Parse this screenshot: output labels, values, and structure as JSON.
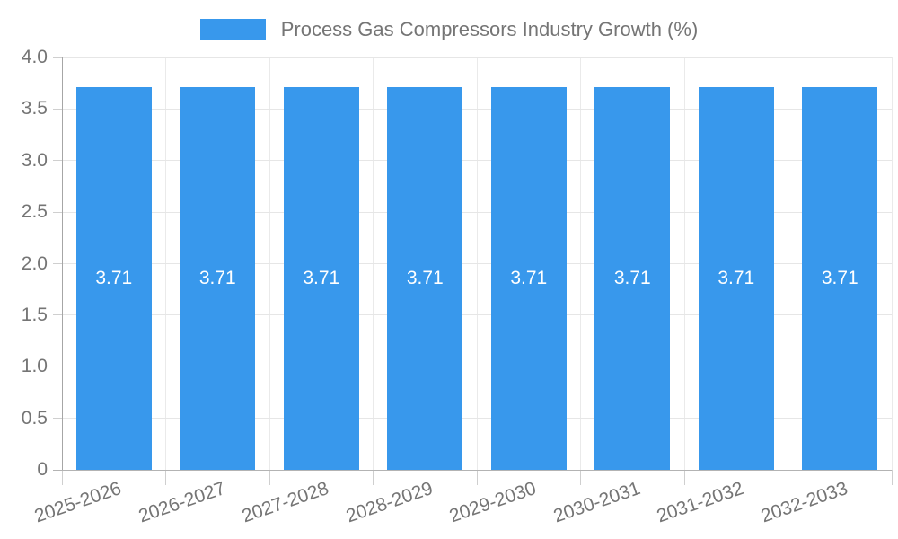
{
  "chart_data": {
    "type": "bar",
    "title": "Process Gas Compressors Industry Growth (%)",
    "legend": {
      "position": "top",
      "entries": [
        "Process Gas Compressors Industry Growth (%)"
      ]
    },
    "categories": [
      "2025-2026",
      "2026-2027",
      "2027-2028",
      "2028-2029",
      "2029-2030",
      "2030-2031",
      "2031-2032",
      "2032-2033"
    ],
    "series": [
      {
        "name": "Process Gas Compressors Industry Growth (%)",
        "values": [
          3.71,
          3.71,
          3.71,
          3.71,
          3.71,
          3.71,
          3.71,
          3.71
        ]
      }
    ],
    "value_labels": [
      "3.71",
      "3.71",
      "3.71",
      "3.71",
      "3.71",
      "3.71",
      "3.71",
      "3.71"
    ],
    "xlabel": "",
    "ylabel": "",
    "ylim": [
      0,
      4
    ],
    "yticks": [
      {
        "value": 0,
        "label": "0"
      },
      {
        "value": 0.5,
        "label": "0.5"
      },
      {
        "value": 1,
        "label": "1.0"
      },
      {
        "value": 1.5,
        "label": "1.5"
      },
      {
        "value": 2,
        "label": "2.0"
      },
      {
        "value": 2.5,
        "label": "2.5"
      },
      {
        "value": 3,
        "label": "3.0"
      },
      {
        "value": 3.5,
        "label": "3.5"
      },
      {
        "value": 4,
        "label": "4.0"
      }
    ],
    "grid": true,
    "colors": {
      "bar": "#3898EC",
      "value_label": "#FFFFFF",
      "axis_text": "#757575",
      "legend_text": "#757575",
      "grid_line_h": "#E6E6E6",
      "grid_line_v": "#EAEAEA",
      "axis_line": "#A6A6A6",
      "baseline": "#B3B3B3",
      "tick": "#CFCFCF",
      "background": "#FFFFFF"
    }
  }
}
